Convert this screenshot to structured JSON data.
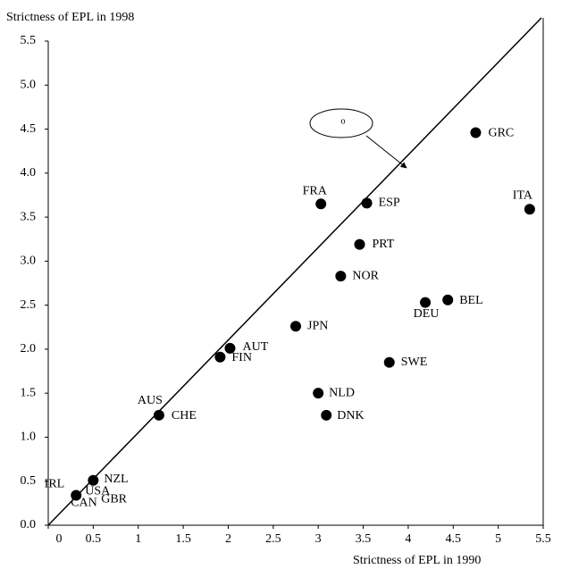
{
  "chart_data": {
    "type": "scatter",
    "y_label": "Strictness of EPL in 1998",
    "x_label": "Strictness of EPL in 1990",
    "annotation": "o",
    "xlim": [
      0,
      5.5
    ],
    "ylim": [
      0,
      5.5
    ],
    "xticks": [
      0,
      0.5,
      1,
      1.5,
      2,
      2.5,
      3,
      3.5,
      4,
      4.5,
      5,
      5.5
    ],
    "yticks": [
      {
        "value": 0,
        "label": "0.0"
      },
      {
        "value": 0.5,
        "label": "0.5"
      },
      {
        "value": 1,
        "label": "1.0"
      },
      {
        "value": 1.5,
        "label": "1.5"
      },
      {
        "value": 2,
        "label": "2.0"
      },
      {
        "value": 2.5,
        "label": "2.5"
      },
      {
        "value": 3,
        "label": "3.0"
      },
      {
        "value": 3.5,
        "label": "3.5"
      },
      {
        "value": 4,
        "label": "4.0"
      },
      {
        "value": 4.5,
        "label": "4.5"
      },
      {
        "value": 5,
        "label": "5.0"
      },
      {
        "value": 5.5,
        "label": "5.5"
      }
    ],
    "color": "#000000",
    "points": [
      {
        "labels": [
          "GRC"
        ],
        "x": 4.75,
        "y": 4.46
      },
      {
        "labels": [
          "FRA"
        ],
        "x": 3.03,
        "y": 3.65
      },
      {
        "labels": [
          "ESP"
        ],
        "x": 3.54,
        "y": 3.66
      },
      {
        "labels": [
          "ITA"
        ],
        "x": 5.35,
        "y": 3.59
      },
      {
        "labels": [
          "PRT"
        ],
        "x": 3.46,
        "y": 3.19
      },
      {
        "labels": [
          "NOR"
        ],
        "x": 3.25,
        "y": 2.83
      },
      {
        "labels": [
          "DEU"
        ],
        "x": 4.19,
        "y": 2.53
      },
      {
        "labels": [
          "BEL"
        ],
        "x": 4.44,
        "y": 2.56
      },
      {
        "labels": [
          "JPN"
        ],
        "x": 2.75,
        "y": 2.26
      },
      {
        "labels": [
          "AUT"
        ],
        "x": 2.02,
        "y": 2.01
      },
      {
        "labels": [
          "FIN"
        ],
        "x": 1.91,
        "y": 1.91
      },
      {
        "labels": [
          "SWE"
        ],
        "x": 3.79,
        "y": 1.85
      },
      {
        "labels": [
          "NLD"
        ],
        "x": 3.0,
        "y": 1.5
      },
      {
        "labels": [
          "AUS",
          "CHE"
        ],
        "x": 1.23,
        "y": 1.25
      },
      {
        "labels": [
          "DNK"
        ],
        "x": 3.09,
        "y": 1.25
      },
      {
        "labels": [
          "NZL"
        ],
        "x": 0.5,
        "y": 0.51
      },
      {
        "labels": [
          "IRL",
          "USA",
          "CAN",
          "GBR"
        ],
        "x": 0.31,
        "y": 0.34
      }
    ]
  }
}
